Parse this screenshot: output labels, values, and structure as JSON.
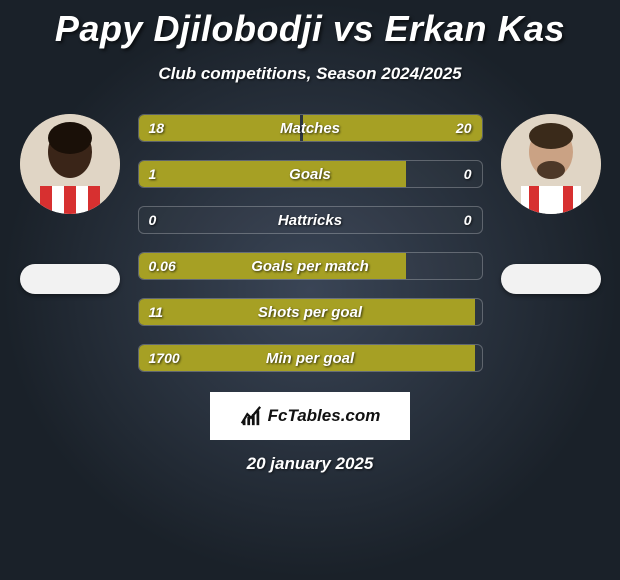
{
  "title": "Papy Djilobodji vs Erkan Kas",
  "subtitle": "Club competitions, Season 2024/2025",
  "footer_date": "20 january 2025",
  "logo_text": "FcTables.com",
  "bar_color": "#a6a024",
  "border_color": "rgba(255,255,255,0.25)",
  "background_center": "#3a4556",
  "background_edge": "#1a2129",
  "title_fontsize": 36,
  "subtitle_fontsize": 17,
  "bar_label_fontsize": 15,
  "bar_value_fontsize": 14,
  "player_left": {
    "name": "Papy Djilobodji",
    "avatar_skin": "#3a2518",
    "jersey_stripes": [
      "#d73030",
      "#ffffff"
    ]
  },
  "player_right": {
    "name": "Erkan Kas",
    "avatar_skin": "#caa284",
    "jersey_stripes": [
      "#d73030",
      "#ffffff"
    ]
  },
  "rows": [
    {
      "label": "Matches",
      "left_text": "18",
      "right_text": "20",
      "left_pct": 47,
      "right_pct": 52
    },
    {
      "label": "Goals",
      "left_text": "1",
      "right_text": "0",
      "left_pct": 78,
      "right_pct": 0
    },
    {
      "label": "Hattricks",
      "left_text": "0",
      "right_text": "0",
      "left_pct": 0,
      "right_pct": 0
    },
    {
      "label": "Goals per match",
      "left_text": "0.06",
      "right_text": "",
      "left_pct": 78,
      "right_pct": 0
    },
    {
      "label": "Shots per goal",
      "left_text": "11",
      "right_text": "",
      "left_pct": 98,
      "right_pct": 0
    },
    {
      "label": "Min per goal",
      "left_text": "1700",
      "right_text": "",
      "left_pct": 98,
      "right_pct": 0
    }
  ]
}
